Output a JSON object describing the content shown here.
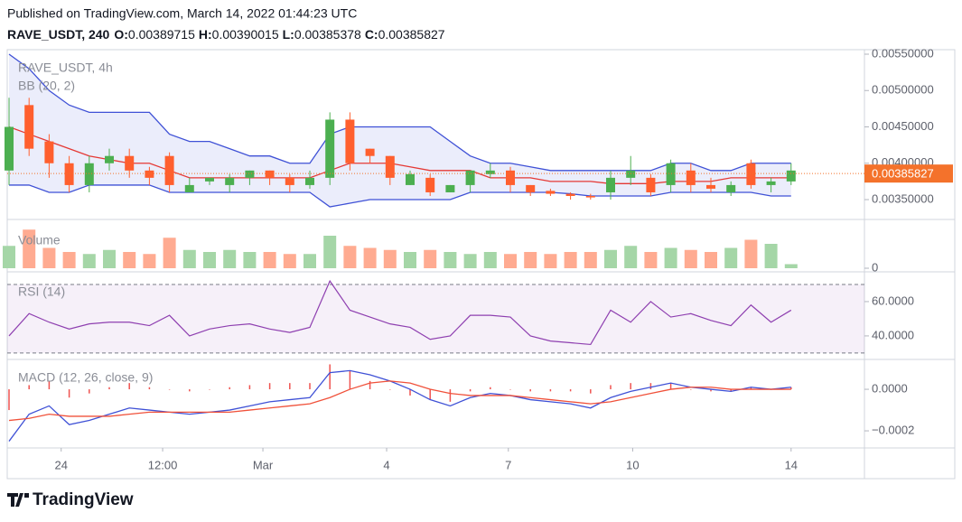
{
  "header": {
    "published": "Published on TradingView.com, March 14, 2022 01:44:23 UTC",
    "symbol": "RAVE_USDT, 240",
    "ohlc": [
      {
        "label": "O:",
        "value": 0.00389715
      },
      {
        "label": "H:",
        "value": 0.00390015
      },
      {
        "label": "L:",
        "value": 0.00385378
      },
      {
        "label": "C:",
        "value": 0.00385827
      }
    ]
  },
  "chart_data": [
    {
      "type": "candlestick",
      "title": "RAVE_USDT, 4h",
      "indicator": "BB (20, 2)",
      "up_color": "#4caf50",
      "down_color": "#ff5f2e",
      "open": [
        0.0039,
        0.0048,
        0.0043,
        0.004,
        0.0037,
        0.004,
        0.0041,
        0.0039,
        0.0041,
        0.0036,
        0.00375,
        0.0037,
        0.0038,
        0.0039,
        0.0038,
        0.0037,
        0.0038,
        0.0046,
        0.0042,
        0.0041,
        0.0037,
        0.0038,
        0.0036,
        0.0037,
        0.00385,
        0.0039,
        0.0037,
        0.00362,
        0.00358,
        0.00355,
        0.0036,
        0.0038,
        0.0038,
        0.0037,
        0.0039,
        0.0037,
        0.0036,
        0.004,
        0.0037,
        0.00375
      ],
      "high": [
        0.0049,
        0.0049,
        0.0044,
        0.0041,
        0.0041,
        0.0042,
        0.0042,
        0.00395,
        0.00415,
        0.0038,
        0.0038,
        0.00385,
        0.0039,
        0.0039,
        0.00385,
        0.0039,
        0.0047,
        0.0047,
        0.0042,
        0.0041,
        0.0039,
        0.00385,
        0.0037,
        0.0039,
        0.004,
        0.00395,
        0.0037,
        0.00365,
        0.0036,
        0.00358,
        0.0039,
        0.0041,
        0.00385,
        0.00405,
        0.004,
        0.0038,
        0.00375,
        0.00405,
        0.0038,
        0.004
      ],
      "low": [
        0.0037,
        0.0041,
        0.0038,
        0.0036,
        0.0036,
        0.0039,
        0.0038,
        0.0037,
        0.0036,
        0.0036,
        0.0037,
        0.0036,
        0.0037,
        0.0037,
        0.0036,
        0.00365,
        0.0037,
        0.0039,
        0.004,
        0.0037,
        0.0037,
        0.00355,
        0.0036,
        0.0036,
        0.0038,
        0.0036,
        0.00355,
        0.00355,
        0.0035,
        0.0035,
        0.0035,
        0.0037,
        0.00355,
        0.0036,
        0.0036,
        0.0036,
        0.00355,
        0.00365,
        0.0036,
        0.0037
      ],
      "close": [
        0.0045,
        0.0042,
        0.004,
        0.0037,
        0.004,
        0.0041,
        0.0039,
        0.0038,
        0.0037,
        0.0037,
        0.0038,
        0.0038,
        0.0039,
        0.0038,
        0.0037,
        0.0038,
        0.0046,
        0.004,
        0.0041,
        0.0038,
        0.00385,
        0.0036,
        0.0037,
        0.0039,
        0.0039,
        0.0037,
        0.0036,
        0.00358,
        0.00355,
        0.00353,
        0.0038,
        0.0039,
        0.0036,
        0.004,
        0.0037,
        0.00365,
        0.0037,
        0.0037,
        0.00375,
        0.0039
      ],
      "bands": [
        {
          "color": "#3f51d6",
          "values": [
            0.0055,
            0.0053,
            0.005,
            0.0048,
            0.0047,
            0.0047,
            0.0047,
            0.0047,
            0.0044,
            0.0043,
            0.0043,
            0.0042,
            0.0041,
            0.0041,
            0.004,
            0.004,
            0.0044,
            0.0045,
            0.0045,
            0.0045,
            0.0045,
            0.0045,
            0.0043,
            0.0041,
            0.004,
            0.004,
            0.00395,
            0.0039,
            0.0039,
            0.0039,
            0.0039,
            0.0039,
            0.0039,
            0.004,
            0.004,
            0.0039,
            0.0039,
            0.004,
            0.004,
            0.004
          ]
        },
        {
          "color": "#e53935",
          "values": [
            0.0045,
            0.0044,
            0.0043,
            0.0042,
            0.0041,
            0.00405,
            0.004,
            0.004,
            0.0039,
            0.0038,
            0.0038,
            0.0038,
            0.0038,
            0.0038,
            0.0038,
            0.0038,
            0.0039,
            0.004,
            0.004,
            0.004,
            0.00395,
            0.0039,
            0.0039,
            0.0039,
            0.0038,
            0.0038,
            0.0038,
            0.00375,
            0.00375,
            0.00375,
            0.00372,
            0.00372,
            0.00372,
            0.00375,
            0.00375,
            0.00375,
            0.0038,
            0.0038,
            0.0038,
            0.0038
          ]
        },
        {
          "color": "#3f51d6",
          "values": [
            0.0037,
            0.0037,
            0.0036,
            0.0036,
            0.0037,
            0.0037,
            0.0037,
            0.0037,
            0.0036,
            0.0036,
            0.0036,
            0.0036,
            0.0036,
            0.0036,
            0.0036,
            0.0036,
            0.0034,
            0.00345,
            0.0035,
            0.0035,
            0.0035,
            0.0035,
            0.0035,
            0.0036,
            0.0036,
            0.0036,
            0.0036,
            0.0036,
            0.00358,
            0.00355,
            0.00355,
            0.00355,
            0.00355,
            0.0036,
            0.0036,
            0.0036,
            0.0036,
            0.0036,
            0.00355,
            0.00355
          ]
        }
      ],
      "last_price": 0.00385827,
      "last_color": "#f4722b",
      "ylim": [
        0.003227,
        0.005562
      ],
      "yticks": [
        {
          "value": 0.0055,
          "label": "0.00550000"
        },
        {
          "value": 0.005,
          "label": "0.00500000"
        },
        {
          "value": 0.0045,
          "label": "0.00450000"
        },
        {
          "value": 0.004,
          "label": "0.00400000"
        },
        {
          "value": 0.0035,
          "label": "0.00350000"
        }
      ]
    },
    {
      "type": "bar",
      "title": "Volume",
      "up_color": "#a5d6a7",
      "down_color": "#ffab91",
      "values": [
        55,
        95,
        50,
        40,
        35,
        45,
        40,
        35,
        75,
        45,
        40,
        45,
        40,
        40,
        35,
        35,
        80,
        55,
        50,
        45,
        40,
        45,
        40,
        35,
        40,
        35,
        40,
        35,
        40,
        40,
        45,
        55,
        40,
        50,
        45,
        40,
        50,
        70,
        60,
        10
      ],
      "ylim": [
        0,
        100
      ],
      "yticks": [
        0
      ]
    },
    {
      "type": "line",
      "title": "RSI (14)",
      "color": "#8e3fb0",
      "band": [
        30,
        70
      ],
      "values": [
        40,
        53,
        48,
        44,
        47,
        48,
        48,
        46,
        52,
        40,
        44,
        46,
        47,
        44,
        42,
        45,
        72,
        55,
        51,
        47,
        45,
        38,
        40,
        52,
        52,
        51,
        40,
        37,
        36,
        35,
        55,
        48,
        60,
        51,
        53,
        49,
        46,
        58,
        48,
        55
      ],
      "ylim": [
        26.8,
        76.3
      ],
      "yticks": [
        {
          "value": 60,
          "label": "60.0000"
        },
        {
          "value": 40,
          "label": "40.0000"
        }
      ]
    },
    {
      "type": "macd",
      "title": "MACD (12, 26, close, 9)",
      "histogram_color": "#ef5350",
      "series": [
        {
          "color": "#3f51d6",
          "values": [
            -0.00025,
            -0.00012,
            -8e-05,
            -0.00017,
            -0.00015,
            -0.00012,
            -9e-05,
            -0.0001,
            -0.00011,
            -0.00012,
            -0.00011,
            -0.0001,
            -8e-05,
            -6e-05,
            -5e-05,
            -4e-05,
            8e-05,
            9e-05,
            7e-05,
            4e-05,
            0,
            -5e-05,
            -8e-05,
            -4e-05,
            -2e-05,
            -3e-05,
            -5e-05,
            -6e-05,
            -7e-05,
            -9e-05,
            -4e-05,
            -1e-05,
            1e-05,
            3e-05,
            1e-05,
            0,
            -1e-05,
            1e-05,
            0,
            1e-05
          ]
        },
        {
          "color": "#f0513a",
          "values": [
            -0.00015,
            -0.00014,
            -0.00012,
            -0.00013,
            -0.00013,
            -0.00013,
            -0.00012,
            -0.00011,
            -0.00011,
            -0.00011,
            -0.00011,
            -0.00011,
            -0.0001,
            -9e-05,
            -8e-05,
            -7e-05,
            -4e-05,
            0,
            3e-05,
            4e-05,
            3e-05,
            0,
            -2e-05,
            -3e-05,
            -3e-05,
            -3e-05,
            -4e-05,
            -5e-05,
            -6e-05,
            -7e-05,
            -6e-05,
            -4e-05,
            -2e-05,
            0,
            1e-05,
            1e-05,
            0,
            0,
            0,
            0
          ]
        }
      ],
      "histogram": [
        -0.0001,
        2e-05,
        4e-05,
        -4e-05,
        -2e-05,
        1e-05,
        3e-05,
        1e-05,
        0,
        -1e-05,
        0,
        1e-05,
        2e-05,
        3e-05,
        3e-05,
        3e-05,
        0.00012,
        9e-05,
        4e-05,
        0,
        -3e-05,
        -5e-05,
        -6e-05,
        -1e-05,
        1e-05,
        0,
        -1e-05,
        -1e-05,
        -1e-05,
        -2e-05,
        2e-05,
        3e-05,
        3e-05,
        3e-05,
        0,
        -1e-05,
        -1e-05,
        1e-05,
        0,
        1e-05
      ],
      "ylim": [
        -0.000278,
        0.000135
      ],
      "yticks": [
        {
          "value": 0,
          "label": "0.0000"
        },
        {
          "value": -0.0002,
          "label": "−0.0002"
        }
      ]
    }
  ],
  "x_axis": {
    "ticks": [
      {
        "value": 2.6,
        "label": "24"
      },
      {
        "value": 7.66,
        "label": "12:00"
      },
      {
        "value": 12.66,
        "label": "Mar"
      },
      {
        "value": 18.83,
        "label": "4"
      },
      {
        "value": 24.9,
        "label": "7"
      },
      {
        "value": 31.1,
        "label": "10"
      },
      {
        "value": 39,
        "label": "14"
      }
    ]
  },
  "footer": {
    "brand": "TradingView"
  }
}
